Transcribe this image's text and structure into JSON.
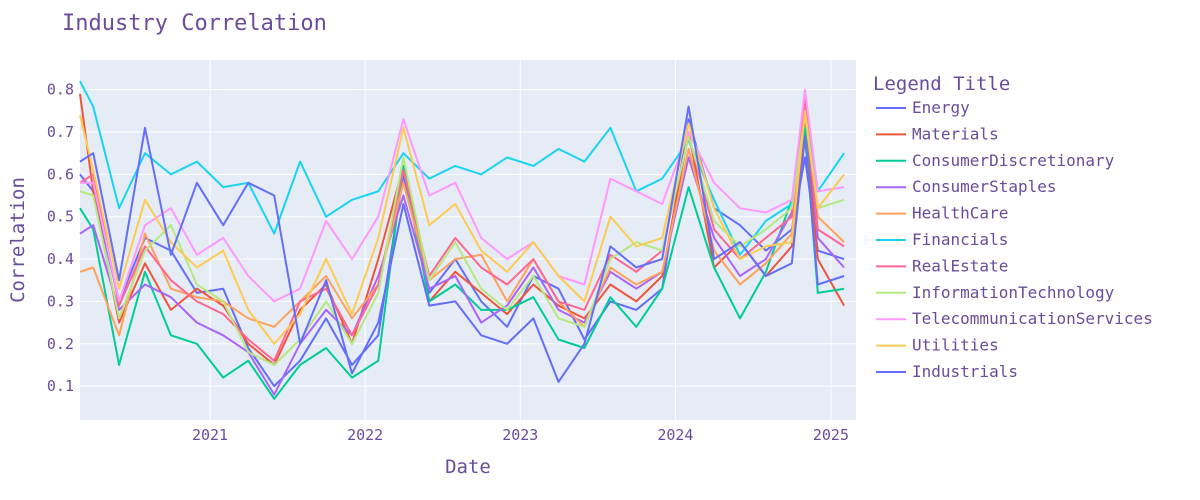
{
  "chart_data": {
    "type": "line",
    "title": "Industry Correlation",
    "xlabel": "Date",
    "ylabel": "Correlation",
    "legend_title": "Legend Title",
    "legend_position": "right",
    "grid": true,
    "background": "#e5ecf6",
    "xlim": [
      "2020-03-01",
      "2025-03-01"
    ],
    "ylim": [
      0.02,
      0.87
    ],
    "x_ticks": [
      "2021-01-01",
      "2022-01-01",
      "2023-01-01",
      "2024-01-01",
      "2025-01-01"
    ],
    "x_tick_labels": [
      "2021",
      "2022",
      "2023",
      "2024",
      "2025"
    ],
    "y_ticks": [
      0.1,
      0.2,
      0.3,
      0.4,
      0.5,
      0.6,
      0.7,
      0.8
    ],
    "y_tick_labels": [
      "0.1",
      "0.2",
      "0.3",
      "0.4",
      "0.5",
      "0.6",
      "0.7",
      "0.8"
    ],
    "x": [
      "2020-03-01",
      "2020-04-01",
      "2020-06-01",
      "2020-08-01",
      "2020-10-01",
      "2020-12-01",
      "2021-02-01",
      "2021-04-01",
      "2021-06-01",
      "2021-08-01",
      "2021-10-01",
      "2021-12-01",
      "2022-02-01",
      "2022-04-01",
      "2022-06-01",
      "2022-08-01",
      "2022-10-01",
      "2022-12-01",
      "2023-02-01",
      "2023-04-01",
      "2023-06-01",
      "2023-08-01",
      "2023-10-01",
      "2023-12-01",
      "2024-02-01",
      "2024-04-01",
      "2024-06-01",
      "2024-08-01",
      "2024-10-01",
      "2024-11-01",
      "2024-12-01",
      "2025-02-01"
    ],
    "series": [
      {
        "name": "Energy",
        "color": "#636efa",
        "values": [
          0.6,
          0.56,
          0.3,
          0.45,
          0.42,
          0.32,
          0.33,
          0.19,
          0.1,
          0.16,
          0.26,
          0.15,
          0.22,
          0.6,
          0.32,
          0.4,
          0.3,
          0.24,
          0.36,
          0.33,
          0.21,
          0.3,
          0.28,
          0.33,
          0.73,
          0.52,
          0.48,
          0.42,
          0.47,
          0.64,
          0.42,
          0.4
        ]
      },
      {
        "name": "Materials",
        "color": "#ef553b",
        "values": [
          0.79,
          0.56,
          0.25,
          0.39,
          0.28,
          0.33,
          0.29,
          0.2,
          0.15,
          0.28,
          0.34,
          0.2,
          0.4,
          0.62,
          0.3,
          0.37,
          0.32,
          0.27,
          0.34,
          0.29,
          0.26,
          0.34,
          0.3,
          0.36,
          0.7,
          0.38,
          0.44,
          0.36,
          0.43,
          0.72,
          0.4,
          0.29
        ]
      },
      {
        "name": "ConsumerDiscretionary",
        "color": "#00cc96",
        "values": [
          0.52,
          0.47,
          0.15,
          0.37,
          0.22,
          0.2,
          0.12,
          0.16,
          0.07,
          0.15,
          0.19,
          0.12,
          0.16,
          0.62,
          0.3,
          0.34,
          0.28,
          0.28,
          0.31,
          0.21,
          0.19,
          0.31,
          0.24,
          0.33,
          0.57,
          0.38,
          0.26,
          0.37,
          0.54,
          0.71,
          0.32,
          0.33
        ]
      },
      {
        "name": "ConsumerStaples",
        "color": "#ab63fa",
        "values": [
          0.46,
          0.48,
          0.28,
          0.34,
          0.31,
          0.25,
          0.22,
          0.18,
          0.08,
          0.2,
          0.28,
          0.22,
          0.36,
          0.55,
          0.33,
          0.36,
          0.25,
          0.29,
          0.38,
          0.28,
          0.25,
          0.37,
          0.33,
          0.37,
          0.64,
          0.45,
          0.36,
          0.4,
          0.51,
          0.76,
          0.45,
          0.38
        ]
      },
      {
        "name": "HealthCare",
        "color": "#ffa15a",
        "values": [
          0.37,
          0.38,
          0.22,
          0.46,
          0.33,
          0.31,
          0.3,
          0.26,
          0.24,
          0.3,
          0.36,
          0.26,
          0.34,
          0.58,
          0.35,
          0.4,
          0.41,
          0.3,
          0.4,
          0.3,
          0.24,
          0.38,
          0.34,
          0.37,
          0.66,
          0.42,
          0.34,
          0.39,
          0.46,
          0.75,
          0.5,
          0.44
        ]
      },
      {
        "name": "Financials",
        "color": "#19d3f3",
        "values": [
          0.82,
          0.76,
          0.52,
          0.65,
          0.6,
          0.63,
          0.57,
          0.58,
          0.46,
          0.63,
          0.5,
          0.54,
          0.56,
          0.65,
          0.59,
          0.62,
          0.6,
          0.64,
          0.62,
          0.66,
          0.63,
          0.71,
          0.56,
          0.59,
          0.68,
          0.54,
          0.41,
          0.49,
          0.53,
          0.77,
          0.56,
          0.65
        ]
      },
      {
        "name": "RealEstate",
        "color": "#ff6692",
        "values": [
          0.58,
          0.6,
          0.29,
          0.43,
          0.35,
          0.3,
          0.27,
          0.21,
          0.16,
          0.3,
          0.33,
          0.22,
          0.34,
          0.61,
          0.36,
          0.45,
          0.38,
          0.34,
          0.4,
          0.3,
          0.28,
          0.41,
          0.37,
          0.42,
          0.69,
          0.47,
          0.4,
          0.45,
          0.5,
          0.78,
          0.47,
          0.43
        ]
      },
      {
        "name": "InformationTechnology",
        "color": "#b6e880",
        "values": [
          0.56,
          0.55,
          0.26,
          0.42,
          0.48,
          0.34,
          0.3,
          0.18,
          0.15,
          0.21,
          0.3,
          0.2,
          0.32,
          0.64,
          0.35,
          0.44,
          0.33,
          0.28,
          0.36,
          0.26,
          0.24,
          0.4,
          0.44,
          0.42,
          0.69,
          0.49,
          0.43,
          0.47,
          0.52,
          0.74,
          0.52,
          0.54
        ]
      },
      {
        "name": "TelecommunicationServices",
        "color": "#ff97ff",
        "values": [
          0.58,
          0.58,
          0.3,
          0.48,
          0.52,
          0.41,
          0.45,
          0.36,
          0.3,
          0.33,
          0.49,
          0.4,
          0.5,
          0.73,
          0.55,
          0.58,
          0.45,
          0.4,
          0.44,
          0.36,
          0.34,
          0.59,
          0.56,
          0.53,
          0.7,
          0.58,
          0.52,
          0.51,
          0.54,
          0.8,
          0.56,
          0.57
        ]
      },
      {
        "name": "Utilities",
        "color": "#fecb52",
        "values": [
          0.74,
          0.61,
          0.33,
          0.54,
          0.44,
          0.38,
          0.42,
          0.28,
          0.2,
          0.27,
          0.4,
          0.27,
          0.45,
          0.71,
          0.48,
          0.53,
          0.42,
          0.37,
          0.44,
          0.36,
          0.3,
          0.5,
          0.43,
          0.45,
          0.72,
          0.52,
          0.4,
          0.43,
          0.44,
          0.75,
          0.52,
          0.6
        ]
      },
      {
        "name": "Industrials",
        "color": "#636efa",
        "values": [
          0.63,
          0.65,
          0.35,
          0.71,
          0.41,
          0.58,
          0.48,
          0.58,
          0.55,
          0.2,
          0.35,
          0.13,
          0.25,
          0.53,
          0.29,
          0.3,
          0.22,
          0.2,
          0.26,
          0.11,
          0.2,
          0.43,
          0.38,
          0.4,
          0.76,
          0.4,
          0.44,
          0.36,
          0.39,
          0.69,
          0.34,
          0.36
        ]
      }
    ]
  }
}
